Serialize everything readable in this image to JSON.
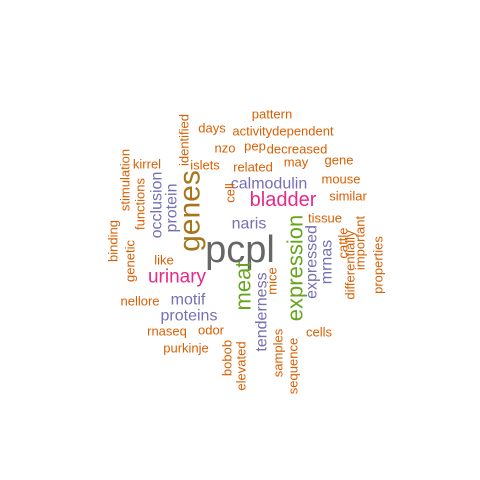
{
  "colors": {
    "orange": "#d95f02",
    "purple": "#7570b3",
    "magenta": "#e7298a",
    "green": "#66a61e",
    "brown": "#a6761d",
    "gray": "#666666"
  },
  "words": [
    {
      "text": "pcpl",
      "color": "gray",
      "weight": 10
    },
    {
      "text": "genes",
      "color": "brown",
      "weight": 6
    },
    {
      "text": "expression",
      "color": "green",
      "weight": 5
    },
    {
      "text": "meat",
      "color": "green",
      "weight": 5
    },
    {
      "text": "bladder",
      "color": "magenta",
      "weight": 4
    },
    {
      "text": "urinary",
      "color": "magenta",
      "weight": 4
    },
    {
      "text": "motif",
      "color": "purple",
      "weight": 3
    },
    {
      "text": "calmodulin",
      "color": "purple",
      "weight": 3
    },
    {
      "text": "tenderness",
      "color": "purple",
      "weight": 3
    },
    {
      "text": "naris",
      "color": "purple",
      "weight": 3
    },
    {
      "text": "proteins",
      "color": "purple",
      "weight": 3
    },
    {
      "text": "protein",
      "color": "purple",
      "weight": 3
    },
    {
      "text": "occlusion",
      "color": "purple",
      "weight": 3
    },
    {
      "text": "expressed",
      "color": "purple",
      "weight": 3
    },
    {
      "text": "mrnas",
      "color": "purple",
      "weight": 3
    },
    {
      "text": "pattern",
      "color": "orange",
      "weight": 1
    },
    {
      "text": "activitydependent",
      "color": "orange",
      "weight": 1
    },
    {
      "text": "days",
      "color": "orange",
      "weight": 1
    },
    {
      "text": "identified",
      "color": "orange",
      "weight": 1
    },
    {
      "text": "nzo",
      "color": "orange",
      "weight": 1
    },
    {
      "text": "pep",
      "color": "orange",
      "weight": 1
    },
    {
      "text": "decreased",
      "color": "orange",
      "weight": 1
    },
    {
      "text": "may",
      "color": "orange",
      "weight": 1
    },
    {
      "text": "gene",
      "color": "orange",
      "weight": 1
    },
    {
      "text": "kirrel",
      "color": "orange",
      "weight": 1
    },
    {
      "text": "islets",
      "color": "orange",
      "weight": 1
    },
    {
      "text": "related",
      "color": "orange",
      "weight": 1
    },
    {
      "text": "mouse",
      "color": "orange",
      "weight": 1
    },
    {
      "text": "stimulation",
      "color": "orange",
      "weight": 1
    },
    {
      "text": "functions",
      "color": "orange",
      "weight": 1
    },
    {
      "text": "cell",
      "color": "orange",
      "weight": 1
    },
    {
      "text": "similar",
      "color": "orange",
      "weight": 1
    },
    {
      "text": "tissue",
      "color": "orange",
      "weight": 1
    },
    {
      "text": "binding",
      "color": "orange",
      "weight": 1
    },
    {
      "text": "genetic",
      "color": "orange",
      "weight": 1
    },
    {
      "text": "like",
      "color": "orange",
      "weight": 1
    },
    {
      "text": "cattle",
      "color": "orange",
      "weight": 1
    },
    {
      "text": "important",
      "color": "orange",
      "weight": 1
    },
    {
      "text": "mice",
      "color": "orange",
      "weight": 1
    },
    {
      "text": "nellore",
      "color": "orange",
      "weight": 1
    },
    {
      "text": "differentially",
      "color": "orange",
      "weight": 1
    },
    {
      "text": "properties",
      "color": "orange",
      "weight": 1
    },
    {
      "text": "rnaseq",
      "color": "orange",
      "weight": 1
    },
    {
      "text": "odor",
      "color": "orange",
      "weight": 1
    },
    {
      "text": "cells",
      "color": "orange",
      "weight": 1
    },
    {
      "text": "purkinje",
      "color": "orange",
      "weight": 1
    },
    {
      "text": "bobob",
      "color": "orange",
      "weight": 1
    },
    {
      "text": "elevated",
      "color": "orange",
      "weight": 1
    },
    {
      "text": "samples",
      "color": "orange",
      "weight": 1
    },
    {
      "text": "sequence",
      "color": "orange",
      "weight": 1
    }
  ]
}
